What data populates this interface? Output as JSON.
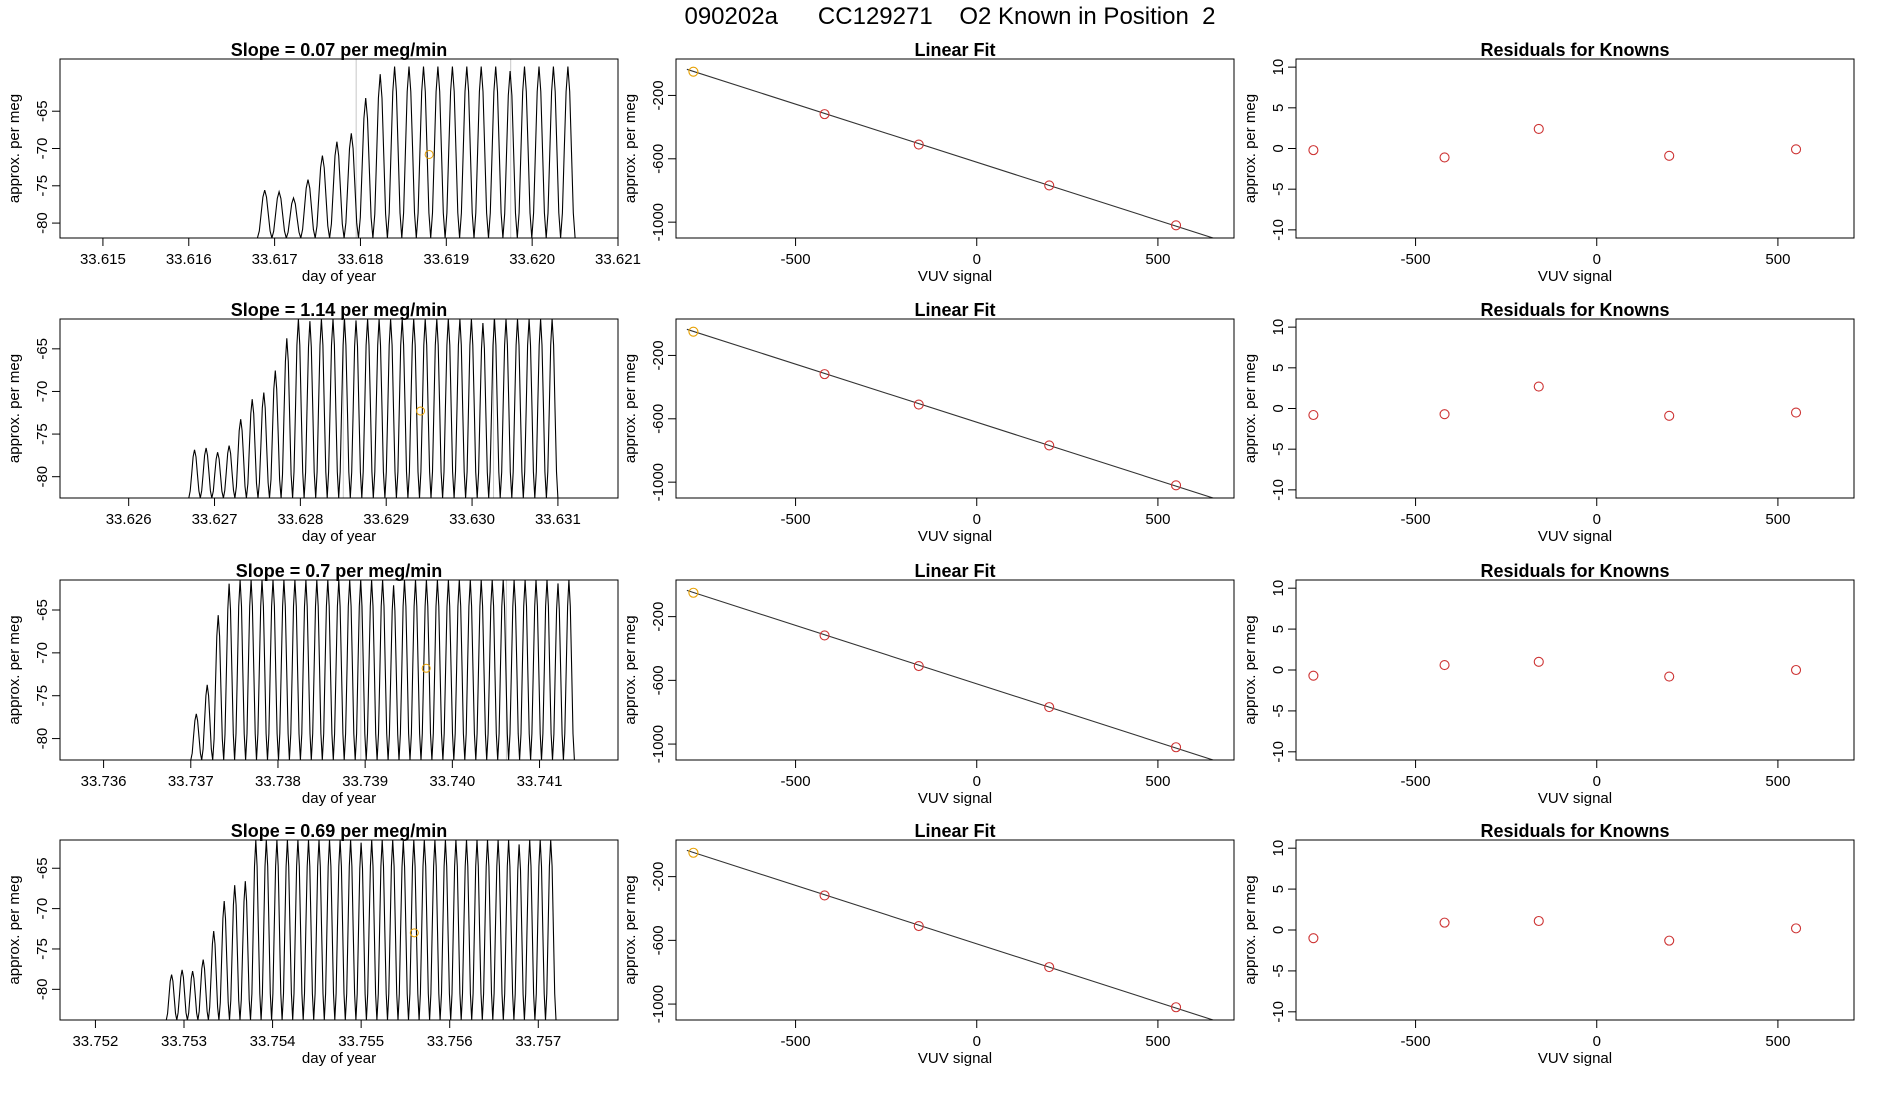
{
  "header": {
    "title": "090202a      CC129271    O2 Known in Position  2"
  },
  "colors": {
    "trace": "#000000",
    "fit_line": "#333333",
    "known_points": "#cd3333",
    "first_point": "#e69f00",
    "marker": "#e69f00",
    "frame": "#000000"
  },
  "chart_data": [
    {
      "type": "line",
      "title": "Slope =  0.07  per meg/min",
      "xlabel": "day of year",
      "ylabel": "approx. per meg",
      "xlim": [
        33.6145,
        33.621
      ],
      "ylim": [
        -82.0,
        -58.0
      ],
      "xticks": [
        33.615,
        33.616,
        33.617,
        33.618,
        33.619,
        33.62,
        33.621
      ],
      "xtick_labels": [
        "33.615",
        "33.616",
        "33.617",
        "33.618",
        "33.619",
        "33.620",
        "33.621"
      ],
      "yticks": [
        -80,
        -75,
        -70,
        -65
      ],
      "ytick_labels": [
        "-80",
        "-75",
        "-70",
        "-65"
      ],
      "series": [
        {
          "name": "signal",
          "start": 33.6168,
          "end": 33.6205,
          "period": 0.000165,
          "low": -82,
          "high": -59,
          "ramp_to": 33.6182
        }
      ],
      "marker": {
        "x": 33.6188,
        "y": -70.8
      },
      "vlines": [
        33.61795,
        33.61975
      ]
    },
    {
      "type": "scatter",
      "title": "Linear Fit",
      "xlabel": "VUV signal",
      "ylabel": "approx. per meg",
      "xlim": [
        -830,
        710
      ],
      "ylim": [
        -1100,
        30
      ],
      "xticks": [
        -500,
        0,
        500
      ],
      "xtick_labels": [
        "-500",
        "0",
        "500"
      ],
      "yticks": [
        -1000,
        -600,
        -200
      ],
      "ytick_labels": [
        "-1000",
        "-600",
        "-200"
      ],
      "points": [
        {
          "x": -782,
          "y": -50
        },
        {
          "x": -420,
          "y": -318
        },
        {
          "x": -160,
          "y": -510
        },
        {
          "x": 200,
          "y": -768
        },
        {
          "x": 550,
          "y": -1020
        }
      ],
      "fit": {
        "x0": -800,
        "y0": -35,
        "x1": 700,
        "y1": -1135
      }
    },
    {
      "type": "scatter",
      "title": "Residuals for Knowns",
      "xlabel": "VUV signal",
      "ylabel": "approx. per meg",
      "xlim": [
        -830,
        710
      ],
      "ylim": [
        -11,
        11
      ],
      "xticks": [
        -500,
        0,
        500
      ],
      "xtick_labels": [
        "-500",
        "0",
        "500"
      ],
      "yticks": [
        -10,
        -5,
        0,
        5,
        10
      ],
      "ytick_labels": [
        "-10",
        "-5",
        "0",
        "5",
        "10"
      ],
      "points": [
        {
          "x": -782,
          "y": -0.2
        },
        {
          "x": -420,
          "y": -1.1
        },
        {
          "x": -160,
          "y": 2.4
        },
        {
          "x": 200,
          "y": -0.9
        },
        {
          "x": 550,
          "y": -0.1
        }
      ]
    },
    {
      "type": "line",
      "title": "Slope =  1.14  per meg/min",
      "xlabel": "day of year",
      "ylabel": "approx. per meg",
      "xlim": [
        33.6252,
        33.6317
      ],
      "ylim": [
        -82.5,
        -61.5
      ],
      "xticks": [
        33.626,
        33.627,
        33.628,
        33.629,
        33.63,
        33.631
      ],
      "xtick_labels": [
        "33.626",
        "33.627",
        "33.628",
        "33.629",
        "33.630",
        "33.631"
      ],
      "yticks": [
        -80,
        -75,
        -70,
        -65
      ],
      "ytick_labels": [
        "-80",
        "-75",
        "-70",
        "-65"
      ],
      "series": [
        {
          "name": "signal",
          "start": 33.6267,
          "end": 33.631,
          "period": 0.000135,
          "low": -82.5,
          "high": -61.5,
          "ramp_to": 33.6279
        }
      ],
      "marker": {
        "x": 33.6294,
        "y": -72.3
      },
      "vlines": [
        33.6285,
        33.63025
      ]
    },
    {
      "type": "scatter",
      "title": "Linear Fit",
      "xlabel": "VUV signal",
      "ylabel": "approx. per meg",
      "xlim": [
        -830,
        710
      ],
      "ylim": [
        -1100,
        30
      ],
      "xticks": [
        -500,
        0,
        500
      ],
      "xtick_labels": [
        "-500",
        "0",
        "500"
      ],
      "yticks": [
        -1000,
        -600,
        -200
      ],
      "ytick_labels": [
        "-1000",
        "-600",
        "-200"
      ],
      "points": [
        {
          "x": -782,
          "y": -50
        },
        {
          "x": -420,
          "y": -318
        },
        {
          "x": -160,
          "y": -510
        },
        {
          "x": 200,
          "y": -768
        },
        {
          "x": 550,
          "y": -1020
        }
      ],
      "fit": {
        "x0": -800,
        "y0": -35,
        "x1": 700,
        "y1": -1135
      }
    },
    {
      "type": "scatter",
      "title": "Residuals for Knowns",
      "xlabel": "VUV signal",
      "ylabel": "approx. per meg",
      "xlim": [
        -830,
        710
      ],
      "ylim": [
        -11,
        11
      ],
      "xticks": [
        -500,
        0,
        500
      ],
      "xtick_labels": [
        "-500",
        "0",
        "500"
      ],
      "yticks": [
        -10,
        -5,
        0,
        5,
        10
      ],
      "ytick_labels": [
        "-10",
        "-5",
        "0",
        "5",
        "10"
      ],
      "points": [
        {
          "x": -782,
          "y": -0.8
        },
        {
          "x": -420,
          "y": -0.7
        },
        {
          "x": -160,
          "y": 2.7
        },
        {
          "x": 200,
          "y": -0.9
        },
        {
          "x": 550,
          "y": -0.5
        }
      ]
    },
    {
      "type": "line",
      "title": "Slope =  0.7  per meg/min",
      "xlabel": "day of year",
      "ylabel": "approx. per meg",
      "xlim": [
        33.7355,
        33.7419
      ],
      "ylim": [
        -82.5,
        -61.5
      ],
      "xticks": [
        33.736,
        33.737,
        33.738,
        33.739,
        33.74,
        33.741
      ],
      "xtick_labels": [
        "33.736",
        "33.737",
        "33.738",
        "33.739",
        "33.740",
        "33.741"
      ],
      "yticks": [
        -80,
        -75,
        -70,
        -65
      ],
      "ytick_labels": [
        "-80",
        "-75",
        "-70",
        "-65"
      ],
      "series": [
        {
          "name": "signal",
          "start": 33.737,
          "end": 33.7414,
          "period": 0.000125,
          "low": -82.5,
          "high": -61.5,
          "ramp_to": 33.7373
        }
      ],
      "marker": {
        "x": 33.7397,
        "y": -71.8
      },
      "vlines": [
        33.73895,
        33.74062
      ]
    },
    {
      "type": "scatter",
      "title": "Linear Fit",
      "xlabel": "VUV signal",
      "ylabel": "approx. per meg",
      "xlim": [
        -830,
        710
      ],
      "ylim": [
        -1100,
        30
      ],
      "xticks": [
        -500,
        0,
        500
      ],
      "xtick_labels": [
        "-500",
        "0",
        "500"
      ],
      "yticks": [
        -1000,
        -600,
        -200
      ],
      "ytick_labels": [
        "-1000",
        "-600",
        "-200"
      ],
      "points": [
        {
          "x": -782,
          "y": -50
        },
        {
          "x": -420,
          "y": -318
        },
        {
          "x": -160,
          "y": -510
        },
        {
          "x": 200,
          "y": -768
        },
        {
          "x": 550,
          "y": -1020
        }
      ],
      "fit": {
        "x0": -800,
        "y0": -35,
        "x1": 700,
        "y1": -1135
      }
    },
    {
      "type": "scatter",
      "title": "Residuals for Knowns",
      "xlabel": "VUV signal",
      "ylabel": "approx. per meg",
      "xlim": [
        -830,
        710
      ],
      "ylim": [
        -11,
        11
      ],
      "xticks": [
        -500,
        0,
        500
      ],
      "xtick_labels": [
        "-500",
        "0",
        "500"
      ],
      "yticks": [
        -10,
        -5,
        0,
        5,
        10
      ],
      "ytick_labels": [
        "-10",
        "-5",
        "0",
        "5",
        "10"
      ],
      "points": [
        {
          "x": -782,
          "y": -0.7
        },
        {
          "x": -420,
          "y": 0.6
        },
        {
          "x": -160,
          "y": 1.0
        },
        {
          "x": 200,
          "y": -0.8
        },
        {
          "x": 550,
          "y": 0.0
        }
      ]
    },
    {
      "type": "line",
      "title": "Slope =  0.69  per meg/min",
      "xlabel": "day of year",
      "ylabel": "approx. per meg",
      "xlim": [
        33.7516,
        33.7579
      ],
      "ylim": [
        -83.8,
        -61.5
      ],
      "xticks": [
        33.752,
        33.753,
        33.754,
        33.755,
        33.756,
        33.757
      ],
      "xtick_labels": [
        "33.752",
        "33.753",
        "33.754",
        "33.755",
        "33.756",
        "33.757"
      ],
      "yticks": [
        -80,
        -75,
        -70,
        -65
      ],
      "ytick_labels": [
        "-80",
        "-75",
        "-70",
        "-65"
      ],
      "series": [
        {
          "name": "signal",
          "start": 33.7528,
          "end": 33.7572,
          "period": 0.00012,
          "low": -83.8,
          "high": -61.5,
          "ramp_to": 33.7537
        }
      ],
      "marker": {
        "x": 33.7556,
        "y": -73.0
      },
      "vlines": []
    },
    {
      "type": "scatter",
      "title": "Linear Fit",
      "xlabel": "VUV signal",
      "ylabel": "approx. per meg",
      "xlim": [
        -830,
        710
      ],
      "ylim": [
        -1100,
        30
      ],
      "xticks": [
        -500,
        0,
        500
      ],
      "xtick_labels": [
        "-500",
        "0",
        "500"
      ],
      "yticks": [
        -1000,
        -600,
        -200
      ],
      "ytick_labels": [
        "-1000",
        "-600",
        "-200"
      ],
      "points": [
        {
          "x": -782,
          "y": -50
        },
        {
          "x": -420,
          "y": -318
        },
        {
          "x": -160,
          "y": -510
        },
        {
          "x": 200,
          "y": -768
        },
        {
          "x": 550,
          "y": -1020
        }
      ],
      "fit": {
        "x0": -800,
        "y0": -35,
        "x1": 700,
        "y1": -1135
      }
    },
    {
      "type": "scatter",
      "title": "Residuals for Knowns",
      "xlabel": "VUV signal",
      "ylabel": "approx. per meg",
      "xlim": [
        -830,
        710
      ],
      "ylim": [
        -11,
        11
      ],
      "xticks": [
        -500,
        0,
        500
      ],
      "xtick_labels": [
        "-500",
        "0",
        "500"
      ],
      "yticks": [
        -10,
        -5,
        0,
        5,
        10
      ],
      "ytick_labels": [
        "-10",
        "-5",
        "0",
        "5",
        "10"
      ],
      "points": [
        {
          "x": -782,
          "y": -1.0
        },
        {
          "x": -420,
          "y": 0.9
        },
        {
          "x": -160,
          "y": 1.1
        },
        {
          "x": 200,
          "y": -1.3
        },
        {
          "x": 550,
          "y": 0.2
        }
      ]
    }
  ]
}
